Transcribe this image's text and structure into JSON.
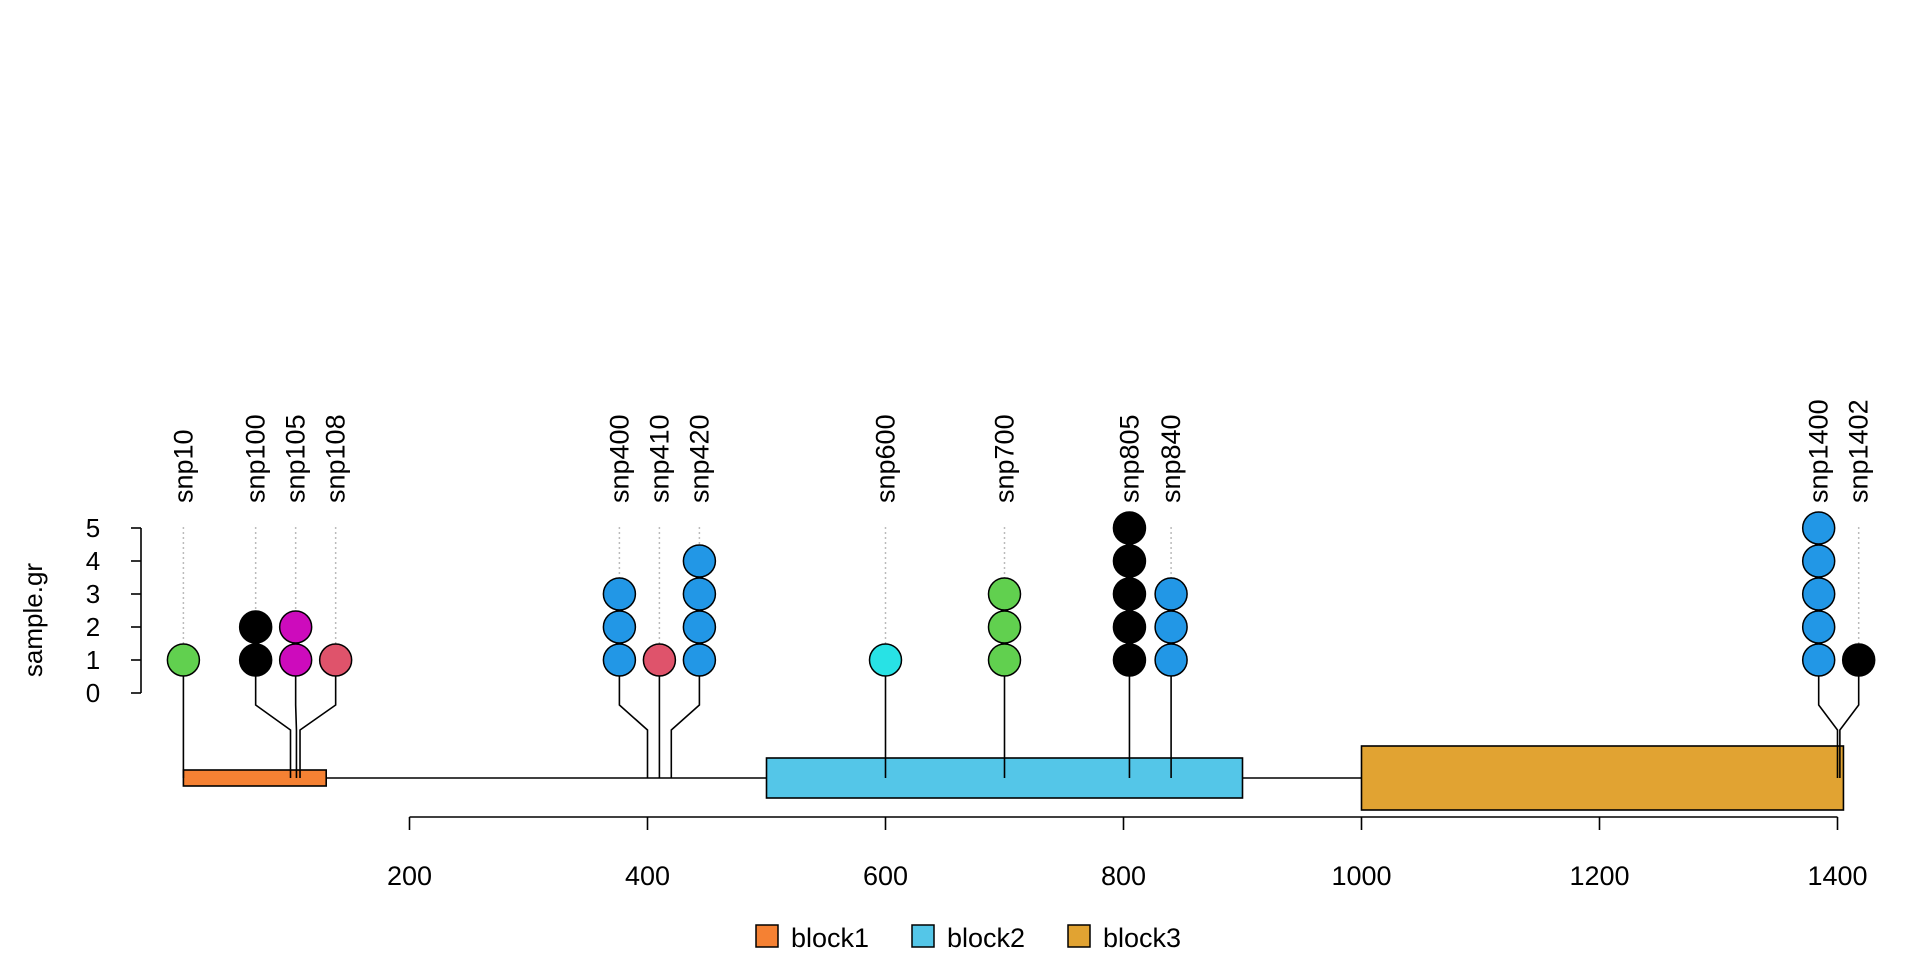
{
  "chart_data": {
    "type": "lollipop",
    "ylabel": "sample.gr",
    "y_ticks": [
      0,
      1,
      2,
      3,
      4,
      5
    ],
    "x_ticks": [
      200,
      400,
      600,
      800,
      1000,
      1200,
      1400
    ],
    "xlim": [
      0,
      1440
    ],
    "ylim": [
      0,
      5
    ],
    "grid": false,
    "legend_position": "bottom",
    "backbone": {
      "start": 10,
      "end": 1405
    },
    "features": [
      {
        "name": "block1",
        "start": 10,
        "end": 130,
        "color": "#F58133"
      },
      {
        "name": "block2",
        "start": 500,
        "end": 900,
        "color": "#54C6E8"
      },
      {
        "name": "block3",
        "start": 1000,
        "end": 1405,
        "color": "#E1A332"
      }
    ],
    "snps": [
      {
        "label": "snp10",
        "position": 10,
        "score": 1,
        "color": "#61D04F"
      },
      {
        "label": "snp100",
        "position": 100,
        "score": 2,
        "color": "#000000"
      },
      {
        "label": "snp105",
        "position": 105,
        "score": 2,
        "color": "#CD0BBC"
      },
      {
        "label": "snp108",
        "position": 108,
        "score": 1,
        "color": "#DF536B"
      },
      {
        "label": "snp400",
        "position": 400,
        "score": 3,
        "color": "#2297E6"
      },
      {
        "label": "snp410",
        "position": 410,
        "score": 1,
        "color": "#DF536B"
      },
      {
        "label": "snp420",
        "position": 420,
        "score": 4,
        "color": "#2297E6"
      },
      {
        "label": "snp600",
        "position": 600,
        "score": 1,
        "color": "#28E2E5"
      },
      {
        "label": "snp700",
        "position": 700,
        "score": 3,
        "color": "#61D04F"
      },
      {
        "label": "snp805",
        "position": 805,
        "score": 5,
        "color": "#000000"
      },
      {
        "label": "snp840",
        "position": 840,
        "score": 3,
        "color": "#2297E6"
      },
      {
        "label": "snp1400",
        "position": 1400,
        "score": 5,
        "color": "#2297E6"
      },
      {
        "label": "snp1402",
        "position": 1402,
        "score": 1,
        "color": "#000000"
      }
    ]
  }
}
